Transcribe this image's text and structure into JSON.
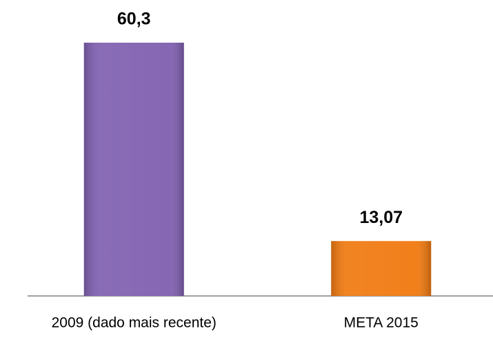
{
  "chart_data": {
    "type": "bar",
    "categories": [
      "2009 (dado mais recente)",
      "META 2015"
    ],
    "values": [
      60.3,
      13.07
    ],
    "value_labels": [
      "60,3",
      "13,07"
    ],
    "colors": [
      "#7f5fb0",
      "#f0790f"
    ]
  }
}
